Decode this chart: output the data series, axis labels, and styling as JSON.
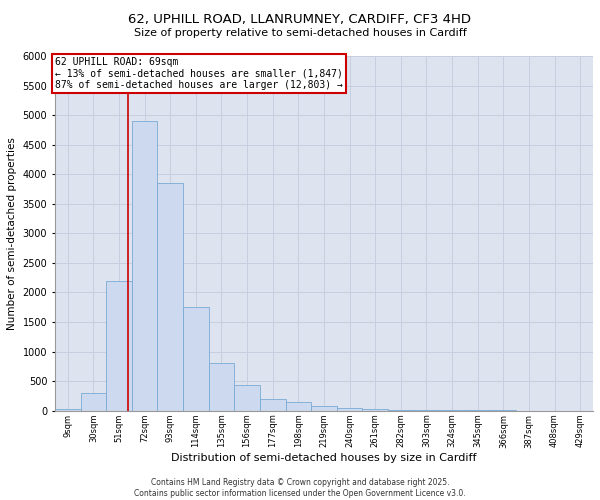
{
  "title_line1": "62, UPHILL ROAD, LLANRUMNEY, CARDIFF, CF3 4HD",
  "title_line2": "Size of property relative to semi-detached houses in Cardiff",
  "xlabel": "Distribution of semi-detached houses by size in Cardiff",
  "ylabel": "Number of semi-detached properties",
  "footer": "Contains HM Land Registry data © Crown copyright and database right 2025.\nContains public sector information licensed under the Open Government Licence v3.0.",
  "bar_color": "#cdd9ee",
  "bar_edge_color": "#7aaad4",
  "grid_color": "#c5cfe0",
  "background_color": "#dde4f0",
  "property_line_color": "#cc0000",
  "property_sqm": 69,
  "annotation_text": "62 UPHILL ROAD: 69sqm\n← 13% of semi-detached houses are smaller (1,847)\n87% of semi-detached houses are larger (12,803) →",
  "categories": [
    "9sqm",
    "30sqm",
    "51sqm",
    "72sqm",
    "93sqm",
    "114sqm",
    "135sqm",
    "156sqm",
    "177sqm",
    "198sqm",
    "219sqm",
    "240sqm",
    "261sqm",
    "282sqm",
    "303sqm",
    "324sqm",
    "345sqm",
    "366sqm",
    "387sqm",
    "408sqm",
    "429sqm"
  ],
  "bin_left": [
    9,
    30,
    51,
    72,
    93,
    114,
    135,
    156,
    177,
    198,
    219,
    240,
    261,
    282,
    303,
    324,
    345,
    366,
    387,
    408,
    429
  ],
  "bin_width": 21,
  "values": [
    30,
    300,
    2200,
    4900,
    3850,
    1750,
    800,
    430,
    200,
    140,
    80,
    45,
    25,
    18,
    12,
    8,
    5,
    4,
    3,
    3,
    2
  ],
  "ylim": [
    0,
    6000
  ],
  "yticks": [
    0,
    500,
    1000,
    1500,
    2000,
    2500,
    3000,
    3500,
    4000,
    4500,
    5000,
    5500,
    6000
  ]
}
